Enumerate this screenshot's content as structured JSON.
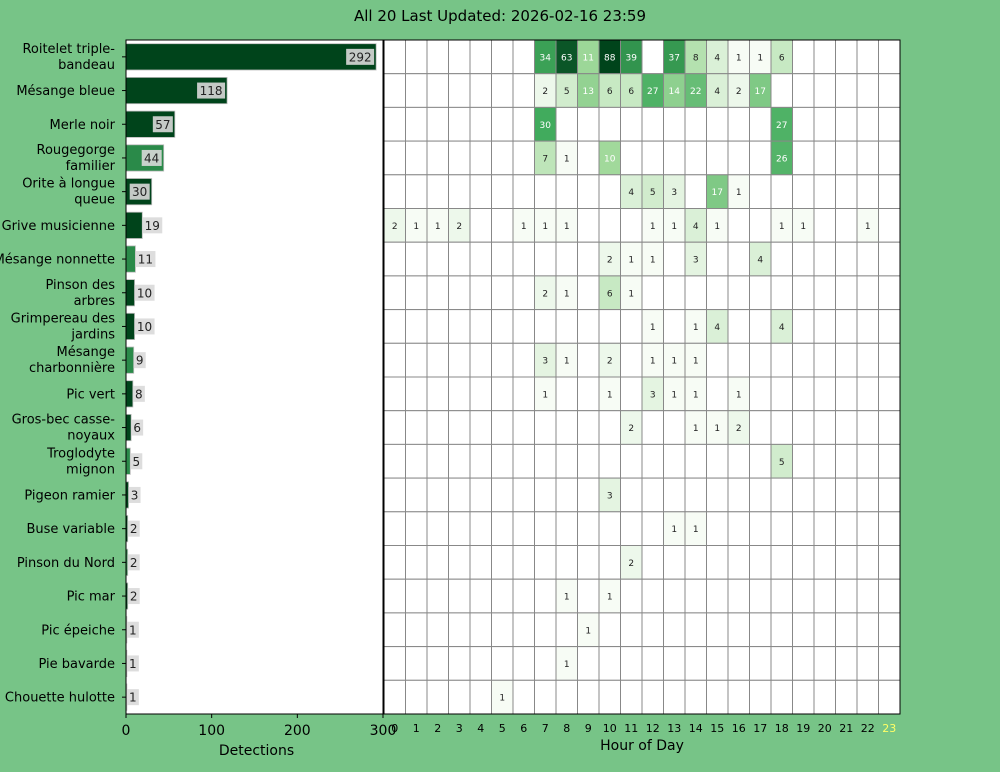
{
  "title": "All 20 Last Updated: 2026-02-16 23:59",
  "colors": {
    "background": "#77c487",
    "plot_background": "#ffffff",
    "grid": "#888888",
    "current_hour_label": "#ffff66",
    "bar_dark": "#00441b",
    "bar_mid": "#2a8a49",
    "bar_label_bg": "#d9d9d9"
  },
  "chart_data": [
    {
      "type": "bar",
      "orientation": "horizontal",
      "xlabel": "Detections",
      "xlim": [
        0,
        300
      ],
      "xticks": [
        0,
        100,
        200,
        300
      ],
      "categories": [
        "Roitelet triple-bandeau",
        "Mésange bleue",
        "Merle noir",
        "Rougegorge familier",
        "Orite à longue queue",
        "Grive musicienne",
        "Mésange nonnette",
        "Pinson des arbres",
        "Grimpereau des jardins",
        "Mésange charbonnière",
        "Pic vert",
        "Gros-bec casse-noyaux",
        "Troglodyte mignon",
        "Pigeon ramier",
        "Buse variable",
        "Pinson du Nord",
        "Pic mar",
        "Pic épeiche",
        "Pie bavarde",
        "Chouette hulotte"
      ],
      "category_labels": [
        [
          "Roitelet triple-",
          "bandeau"
        ],
        [
          "Mésange bleue"
        ],
        [
          "Merle noir"
        ],
        [
          "Rougegorge",
          "familier"
        ],
        [
          "Orite à longue",
          "queue"
        ],
        [
          "Grive musicienne"
        ],
        [
          "Mésange nonnette"
        ],
        [
          "Pinson des",
          "arbres"
        ],
        [
          "Grimpereau des",
          "jardins"
        ],
        [
          "Mésange",
          "charbonnière"
        ],
        [
          "Pic vert"
        ],
        [
          "Gros-bec casse-",
          "noyaux"
        ],
        [
          "Troglodyte",
          "mignon"
        ],
        [
          "Pigeon ramier"
        ],
        [
          "Buse variable"
        ],
        [
          "Pinson du Nord"
        ],
        [
          "Pic mar"
        ],
        [
          "Pic épeiche"
        ],
        [
          "Pie bavarde"
        ],
        [
          "Chouette hulotte"
        ]
      ],
      "values": [
        292,
        118,
        57,
        44,
        30,
        19,
        11,
        10,
        10,
        9,
        8,
        6,
        5,
        3,
        2,
        2,
        2,
        1,
        1,
        1
      ]
    },
    {
      "type": "heatmap",
      "xlabel": "Hour of Day",
      "x": [
        0,
        1,
        2,
        3,
        4,
        5,
        6,
        7,
        8,
        9,
        10,
        11,
        12,
        13,
        14,
        15,
        16,
        17,
        18,
        19,
        20,
        21,
        22,
        23
      ],
      "highlighted_hour": 23,
      "rows": [
        {
          "species": "Roitelet triple-bandeau",
          "values": [
            0,
            0,
            0,
            0,
            0,
            0,
            0,
            34,
            63,
            11,
            88,
            39,
            0,
            37,
            8,
            4,
            1,
            1,
            6,
            0,
            0,
            0,
            0,
            0
          ]
        },
        {
          "species": "Mésange bleue",
          "values": [
            0,
            0,
            0,
            0,
            0,
            0,
            0,
            2,
            5,
            13,
            6,
            6,
            27,
            14,
            22,
            4,
            2,
            17,
            0,
            0,
            0,
            0,
            0,
            0
          ]
        },
        {
          "species": "Merle noir",
          "values": [
            0,
            0,
            0,
            0,
            0,
            0,
            0,
            30,
            0,
            0,
            0,
            0,
            0,
            0,
            0,
            0,
            0,
            0,
            27,
            0,
            0,
            0,
            0,
            0
          ]
        },
        {
          "species": "Rougegorge familier",
          "values": [
            0,
            0,
            0,
            0,
            0,
            0,
            0,
            7,
            1,
            0,
            10,
            0,
            0,
            0,
            0,
            0,
            0,
            0,
            26,
            0,
            0,
            0,
            0,
            0
          ]
        },
        {
          "species": "Orite à longue queue",
          "values": [
            0,
            0,
            0,
            0,
            0,
            0,
            0,
            0,
            0,
            0,
            0,
            4,
            5,
            3,
            0,
            17,
            1,
            0,
            0,
            0,
            0,
            0,
            0,
            0
          ]
        },
        {
          "species": "Grive musicienne",
          "values": [
            2,
            1,
            1,
            2,
            0,
            0,
            1,
            1,
            1,
            0,
            0,
            0,
            1,
            1,
            4,
            1,
            0,
            0,
            1,
            1,
            0,
            0,
            1,
            0
          ]
        },
        {
          "species": "Mésange nonnette",
          "values": [
            0,
            0,
            0,
            0,
            0,
            0,
            0,
            0,
            0,
            0,
            2,
            1,
            1,
            0,
            3,
            0,
            0,
            4,
            0,
            0,
            0,
            0,
            0,
            0
          ]
        },
        {
          "species": "Pinson des arbres",
          "values": [
            0,
            0,
            0,
            0,
            0,
            0,
            0,
            2,
            1,
            0,
            6,
            1,
            0,
            0,
            0,
            0,
            0,
            0,
            0,
            0,
            0,
            0,
            0,
            0
          ]
        },
        {
          "species": "Grimpereau des jardins",
          "values": [
            0,
            0,
            0,
            0,
            0,
            0,
            0,
            0,
            0,
            0,
            0,
            0,
            1,
            0,
            1,
            4,
            0,
            0,
            4,
            0,
            0,
            0,
            0,
            0
          ]
        },
        {
          "species": "Mésange charbonnière",
          "values": [
            0,
            0,
            0,
            0,
            0,
            0,
            0,
            3,
            1,
            0,
            2,
            0,
            1,
            1,
            1,
            0,
            0,
            0,
            0,
            0,
            0,
            0,
            0,
            0
          ]
        },
        {
          "species": "Pic vert",
          "values": [
            0,
            0,
            0,
            0,
            0,
            0,
            0,
            1,
            0,
            0,
            1,
            0,
            3,
            1,
            1,
            0,
            1,
            0,
            0,
            0,
            0,
            0,
            0,
            0
          ]
        },
        {
          "species": "Gros-bec casse-noyaux",
          "values": [
            0,
            0,
            0,
            0,
            0,
            0,
            0,
            0,
            0,
            0,
            0,
            2,
            0,
            0,
            1,
            1,
            2,
            0,
            0,
            0,
            0,
            0,
            0,
            0
          ]
        },
        {
          "species": "Troglodyte mignon",
          "values": [
            0,
            0,
            0,
            0,
            0,
            0,
            0,
            0,
            0,
            0,
            0,
            0,
            0,
            0,
            0,
            0,
            0,
            0,
            5,
            0,
            0,
            0,
            0,
            0
          ]
        },
        {
          "species": "Pigeon ramier",
          "values": [
            0,
            0,
            0,
            0,
            0,
            0,
            0,
            0,
            0,
            0,
            3,
            0,
            0,
            0,
            0,
            0,
            0,
            0,
            0,
            0,
            0,
            0,
            0,
            0
          ]
        },
        {
          "species": "Buse variable",
          "values": [
            0,
            0,
            0,
            0,
            0,
            0,
            0,
            0,
            0,
            0,
            0,
            0,
            0,
            1,
            1,
            0,
            0,
            0,
            0,
            0,
            0,
            0,
            0,
            0
          ]
        },
        {
          "species": "Pinson du Nord",
          "values": [
            0,
            0,
            0,
            0,
            0,
            0,
            0,
            0,
            0,
            0,
            0,
            2,
            0,
            0,
            0,
            0,
            0,
            0,
            0,
            0,
            0,
            0,
            0,
            0
          ]
        },
        {
          "species": "Pic mar",
          "values": [
            0,
            0,
            0,
            0,
            0,
            0,
            0,
            0,
            1,
            0,
            1,
            0,
            0,
            0,
            0,
            0,
            0,
            0,
            0,
            0,
            0,
            0,
            0,
            0
          ]
        },
        {
          "species": "Pic épeiche",
          "values": [
            0,
            0,
            0,
            0,
            0,
            0,
            0,
            0,
            0,
            1,
            0,
            0,
            0,
            0,
            0,
            0,
            0,
            0,
            0,
            0,
            0,
            0,
            0,
            0
          ]
        },
        {
          "species": "Pie bavarde",
          "values": [
            0,
            0,
            0,
            0,
            0,
            0,
            0,
            0,
            1,
            0,
            0,
            0,
            0,
            0,
            0,
            0,
            0,
            0,
            0,
            0,
            0,
            0,
            0,
            0
          ]
        },
        {
          "species": "Chouette hulotte",
          "values": [
            0,
            0,
            0,
            0,
            0,
            1,
            0,
            0,
            0,
            0,
            0,
            0,
            0,
            0,
            0,
            0,
            0,
            0,
            0,
            0,
            0,
            0,
            0,
            0
          ]
        }
      ]
    }
  ]
}
